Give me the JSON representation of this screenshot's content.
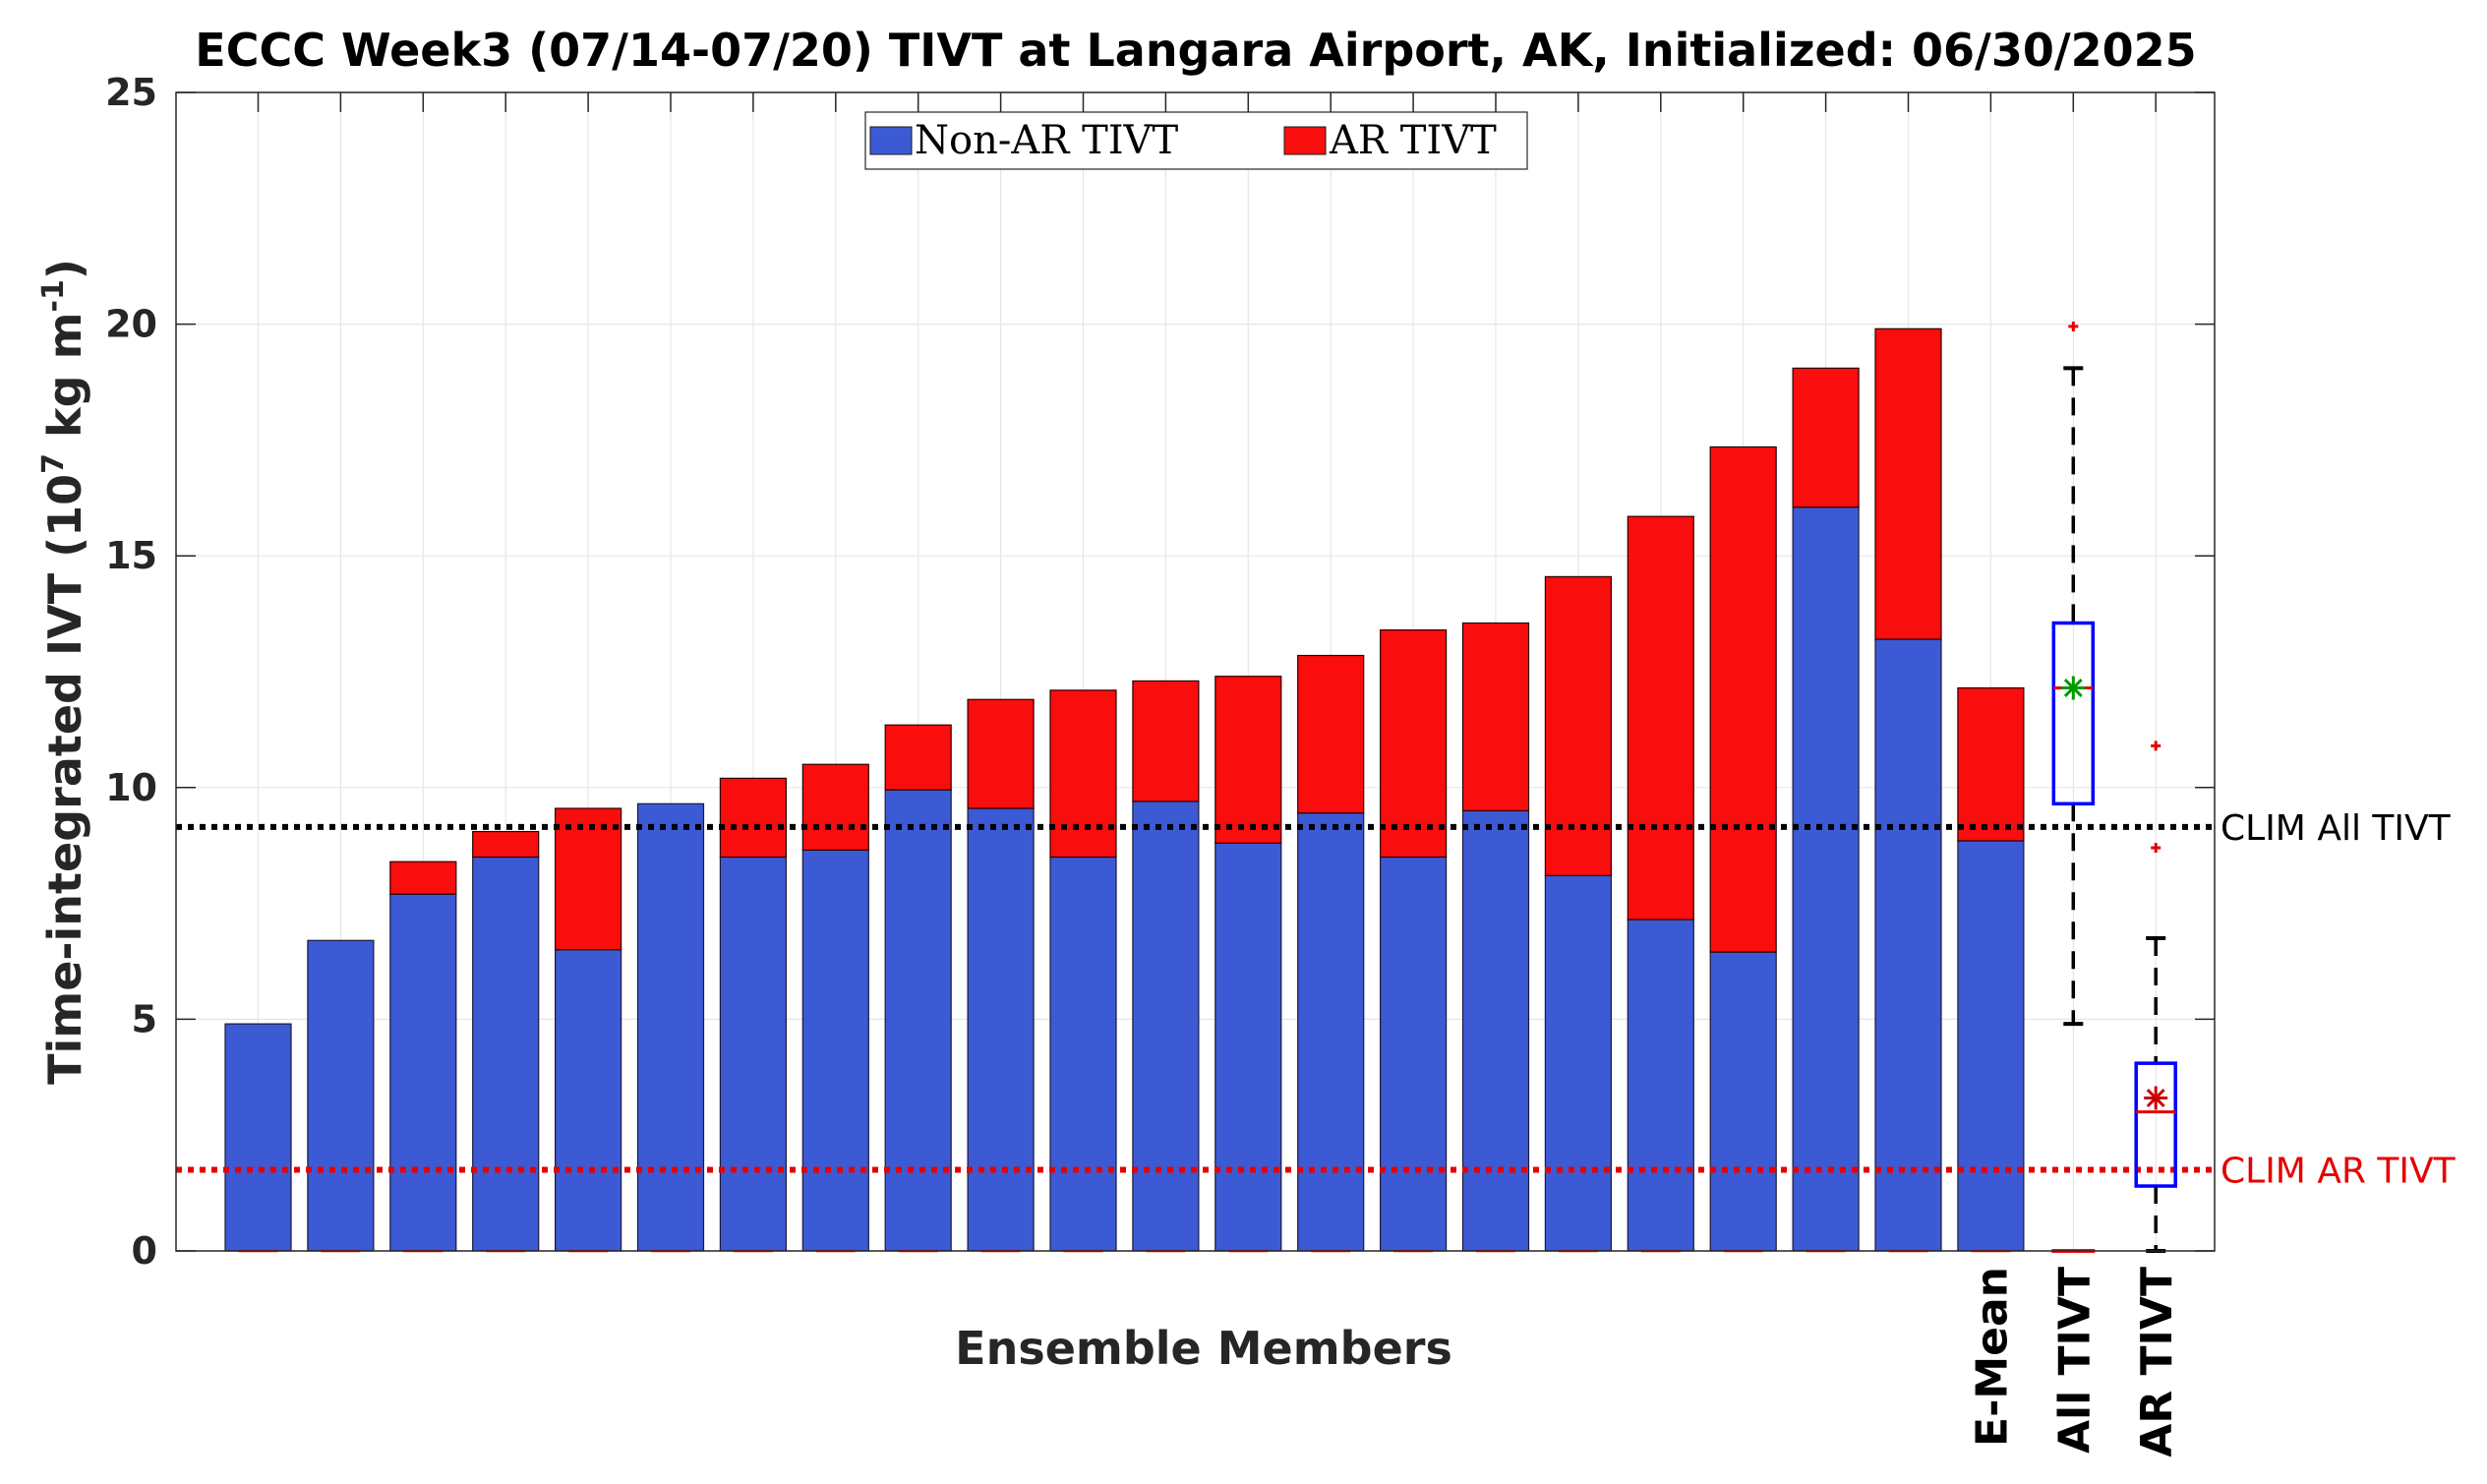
{
  "chart_data": {
    "type": "bar",
    "title": "ECCC Week3 (07/14-07/20) TIVT at Langara Airport, AK, Initialized: 06/30/2025",
    "xlabel": "Ensemble Members",
    "ylabel": "Time-integrated IVT (10",
    "ylabel_exp1": "7",
    "ylabel_unit": " kg m",
    "ylabel_exp2": "-1",
    "ylabel_close": ")",
    "ylim": [
      0,
      25
    ],
    "yticks": [
      "0",
      "5",
      "10",
      "15",
      "20",
      "25"
    ],
    "grid": true,
    "legend_position": "top-center",
    "categories": [
      "",
      "",
      "",
      "",
      "",
      "",
      "",
      "",
      "",
      "",
      "",
      "",
      "",
      "",
      "",
      "",
      "",
      "",
      "",
      "",
      "",
      "E-Mean"
    ],
    "series": [
      {
        "name": "Non-AR TIVT",
        "color": "#3c5ad4",
        "values": [
          4.9,
          6.7,
          7.7,
          8.5,
          6.5,
          9.65,
          8.5,
          8.65,
          9.95,
          9.55,
          8.5,
          9.7,
          8.8,
          9.45,
          8.5,
          9.5,
          8.1,
          7.15,
          6.45,
          16.05,
          13.2,
          8.85
        ]
      },
      {
        "name": "AR TIVT",
        "color": "#fa0d0d",
        "values": [
          0,
          0,
          0.7,
          0.55,
          3.05,
          0,
          1.7,
          1.85,
          1.4,
          2.35,
          3.6,
          2.6,
          3.6,
          3.4,
          4.9,
          4.05,
          6.45,
          8.7,
          10.9,
          3.0,
          6.7,
          3.3
        ]
      }
    ],
    "boxplots": [
      {
        "label": "All TIVT",
        "box_color": "#0000ff",
        "q1": 9.65,
        "median": 12.15,
        "q3": 13.55,
        "whisker_low": 4.9,
        "whisker_high": 19.05,
        "mean": 12.15,
        "mean_color": "#009900",
        "outliers": [
          19.95
        ],
        "zero_marker": 0
      },
      {
        "label": "AR TIVT",
        "box_color": "#0000ff",
        "q1": 1.4,
        "median": 3.0,
        "q3": 4.05,
        "whisker_low": 0,
        "whisker_high": 6.75,
        "mean": 3.3,
        "mean_color": "#cc0000",
        "outliers": [
          8.7,
          10.9
        ]
      }
    ],
    "reference_lines": [
      {
        "label": "CLIM All TIVT",
        "value": 9.15,
        "color": "#000000"
      },
      {
        "label": "CLIM AR TIVT",
        "value": 1.75,
        "color": "#e60000"
      }
    ],
    "xticks_after_members": [
      "E-Mean",
      "All TIVT",
      "AR TIVT"
    ]
  }
}
